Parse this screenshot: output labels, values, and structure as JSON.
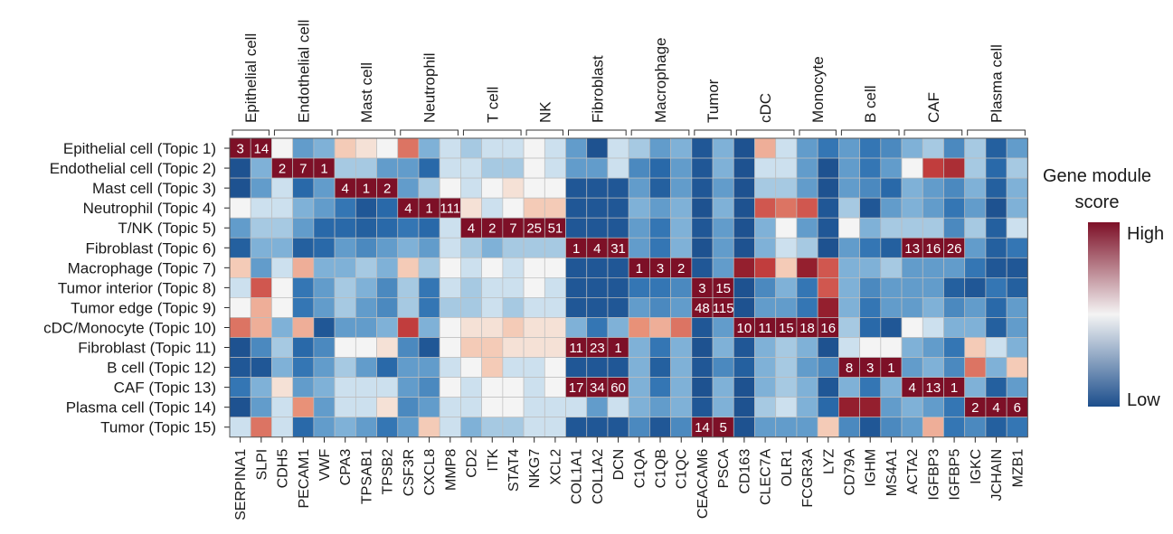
{
  "chart_data": {
    "type": "heatmap",
    "title": "",
    "xlabel": "",
    "ylabel": "",
    "groups": [
      {
        "name": "Epithelial cell",
        "span": [
          0,
          1
        ]
      },
      {
        "name": "Endothelial cell",
        "span": [
          2,
          4
        ]
      },
      {
        "name": "Mast cell",
        "span": [
          5,
          7
        ]
      },
      {
        "name": "Neutrophil",
        "span": [
          8,
          10
        ]
      },
      {
        "name": "T cell",
        "span": [
          11,
          13
        ]
      },
      {
        "name": "NK",
        "span": [
          14,
          15
        ]
      },
      {
        "name": "Fibroblast",
        "span": [
          16,
          18
        ]
      },
      {
        "name": "Macrophage",
        "span": [
          19,
          21
        ]
      },
      {
        "name": "Tumor",
        "span": [
          22,
          23
        ]
      },
      {
        "name": "cDC",
        "span": [
          24,
          26
        ]
      },
      {
        "name": "Monocyte",
        "span": [
          27,
          28
        ]
      },
      {
        "name": "B cell",
        "span": [
          29,
          31
        ]
      },
      {
        "name": "CAF",
        "span": [
          32,
          34
        ]
      },
      {
        "name": "Plasma cell",
        "span": [
          35,
          37
        ]
      }
    ],
    "genes": [
      "SERPINA1",
      "SLPI",
      "CDH5",
      "PECAM1",
      "VWF",
      "CPA3",
      "TPSAB1",
      "TPSB2",
      "CSF3R",
      "CXCL8",
      "MMP8",
      "CD2",
      "ITK",
      "STAT4",
      "NKG7",
      "XCL2",
      "COL1A1",
      "COL1A2",
      "DCN",
      "C1QA",
      "C1QB",
      "C1QC",
      "CEACAM6",
      "PSCA",
      "CD163",
      "CLEC7A",
      "OLR1",
      "FCGR3A",
      "LYZ",
      "CD79A",
      "IGHM",
      "MS4A1",
      "ACTA2",
      "IGFBP3",
      "IGFBP5",
      "IGKC",
      "JCHAIN",
      "MZB1"
    ],
    "topics": [
      "Epithelial cell (Topic 1)",
      "Endothelial cell (Topic 2)",
      "Mast cell (Topic 3)",
      "Neutrophil (Topic 4)",
      "T/NK (Topic 5)",
      "Fibroblast (Topic 6)",
      "Macrophage (Topic 7)",
      "Tumor interior (Topic 8)",
      "Tumor edge (Topic 9)",
      "cDC/Monocyte (Topic 10)",
      "Fibroblast (Topic 11)",
      "B cell (Topic 12)",
      "CAF (Topic 13)",
      "Plasma cell (Topic 14)",
      "Tumor (Topic 15)"
    ],
    "values": [
      [
        1.0,
        1.0,
        0.5,
        0.3,
        0.35,
        0.6,
        0.55,
        0.5,
        0.75,
        0.35,
        0.45,
        0.4,
        0.45,
        0.45,
        0.5,
        0.45,
        0.3,
        0.02,
        0.45,
        0.4,
        0.3,
        0.35,
        0.05,
        0.35,
        0.02,
        0.65,
        0.45,
        0.3,
        0.2,
        0.3,
        0.2,
        0.25,
        0.35,
        0.4,
        0.25,
        0.4,
        0.1,
        0.3
      ],
      [
        0.02,
        0.35,
        1.0,
        1.0,
        1.0,
        0.4,
        0.4,
        0.3,
        0.3,
        0.15,
        0.45,
        0.45,
        0.4,
        0.4,
        0.5,
        0.45,
        0.3,
        0.3,
        0.45,
        0.25,
        0.15,
        0.3,
        0.05,
        0.35,
        0.02,
        0.45,
        0.45,
        0.3,
        0.02,
        0.3,
        0.2,
        0.3,
        0.5,
        0.85,
        0.9,
        0.4,
        0.15,
        0.4
      ],
      [
        0.02,
        0.3,
        0.45,
        0.15,
        0.3,
        1.0,
        1.0,
        1.0,
        0.3,
        0.4,
        0.5,
        0.45,
        0.5,
        0.55,
        0.5,
        0.5,
        0.05,
        0.05,
        0.05,
        0.3,
        0.1,
        0.3,
        0.05,
        0.3,
        0.02,
        0.4,
        0.4,
        0.3,
        0.02,
        0.3,
        0.25,
        0.15,
        0.35,
        0.3,
        0.25,
        0.35,
        0.1,
        0.35
      ],
      [
        0.5,
        0.45,
        0.45,
        0.35,
        0.3,
        0.2,
        0.05,
        0.15,
        1.0,
        1.0,
        1.0,
        0.55,
        0.45,
        0.5,
        0.6,
        0.6,
        0.05,
        0.05,
        0.05,
        0.35,
        0.3,
        0.35,
        0.02,
        0.35,
        0.02,
        0.8,
        0.75,
        0.8,
        0.05,
        0.4,
        0.05,
        0.3,
        0.35,
        0.3,
        0.2,
        0.3,
        0.02,
        0.35
      ],
      [
        0.3,
        0.4,
        0.4,
        0.3,
        0.15,
        0.15,
        0.1,
        0.15,
        0.2,
        0.15,
        0.45,
        1.0,
        1.0,
        1.0,
        1.0,
        1.0,
        0.05,
        0.05,
        0.05,
        0.3,
        0.2,
        0.35,
        0.05,
        0.3,
        0.02,
        0.35,
        0.5,
        0.3,
        0.05,
        0.5,
        0.35,
        0.4,
        0.4,
        0.4,
        0.25,
        0.4,
        0.1,
        0.45
      ],
      [
        0.1,
        0.35,
        0.35,
        0.1,
        0.15,
        0.3,
        0.25,
        0.3,
        0.35,
        0.3,
        0.45,
        0.4,
        0.35,
        0.4,
        0.4,
        0.4,
        1.0,
        1.0,
        1.0,
        0.3,
        0.2,
        0.35,
        0.02,
        0.3,
        0.02,
        0.35,
        0.45,
        0.4,
        0.02,
        0.3,
        0.2,
        0.1,
        1.0,
        1.0,
        1.0,
        0.3,
        0.1,
        0.2
      ],
      [
        0.6,
        0.3,
        0.45,
        0.65,
        0.35,
        0.35,
        0.4,
        0.35,
        0.6,
        0.4,
        0.5,
        0.45,
        0.5,
        0.45,
        0.5,
        0.5,
        0.05,
        0.05,
        0.05,
        1.0,
        1.0,
        1.0,
        0.05,
        0.3,
        0.95,
        0.85,
        0.6,
        0.95,
        0.8,
        0.35,
        0.35,
        0.4,
        0.3,
        0.3,
        0.3,
        0.2,
        0.05,
        0.05
      ],
      [
        0.45,
        0.8,
        0.5,
        0.2,
        0.3,
        0.4,
        0.35,
        0.25,
        0.4,
        0.2,
        0.45,
        0.4,
        0.45,
        0.45,
        0.5,
        0.45,
        0.05,
        0.05,
        0.05,
        0.2,
        0.2,
        0.25,
        1.0,
        1.0,
        0.02,
        0.25,
        0.35,
        0.2,
        0.8,
        0.35,
        0.25,
        0.3,
        0.3,
        0.3,
        0.1,
        0.05,
        0.2,
        0.1
      ],
      [
        0.5,
        0.65,
        0.5,
        0.2,
        0.3,
        0.4,
        0.3,
        0.25,
        0.4,
        0.2,
        0.4,
        0.4,
        0.45,
        0.4,
        0.45,
        0.45,
        0.05,
        0.05,
        0.05,
        0.3,
        0.25,
        0.3,
        1.0,
        1.0,
        0.02,
        0.3,
        0.3,
        0.2,
        0.95,
        0.35,
        0.2,
        0.3,
        0.3,
        0.35,
        0.25,
        0.3,
        0.15,
        0.3
      ],
      [
        0.75,
        0.65,
        0.35,
        0.65,
        0.05,
        0.3,
        0.3,
        0.35,
        0.85,
        0.35,
        0.5,
        0.55,
        0.55,
        0.6,
        0.55,
        0.55,
        0.35,
        0.2,
        0.35,
        0.7,
        0.65,
        0.75,
        0.05,
        0.3,
        1.0,
        1.0,
        1.0,
        1.0,
        1.0,
        0.4,
        0.15,
        0.05,
        0.5,
        0.45,
        0.35,
        0.35,
        0.1,
        0.3
      ],
      [
        0.02,
        0.25,
        0.4,
        0.15,
        0.25,
        0.5,
        0.5,
        0.55,
        0.25,
        0.05,
        0.5,
        0.6,
        0.6,
        0.55,
        0.55,
        0.55,
        1.0,
        1.0,
        1.0,
        0.35,
        0.2,
        0.35,
        0.02,
        0.35,
        0.05,
        0.35,
        0.4,
        0.35,
        0.02,
        0.45,
        0.5,
        0.5,
        0.35,
        0.3,
        0.2,
        0.6,
        0.45,
        0.35
      ],
      [
        0.05,
        0.05,
        0.35,
        0.2,
        0.3,
        0.4,
        0.3,
        0.15,
        0.3,
        0.3,
        0.45,
        0.5,
        0.6,
        0.45,
        0.45,
        0.5,
        0.05,
        0.05,
        0.05,
        0.35,
        0.1,
        0.35,
        0.05,
        0.25,
        0.1,
        0.35,
        0.4,
        0.3,
        0.25,
        1.0,
        1.0,
        1.0,
        0.3,
        0.35,
        0.25,
        0.75,
        0.35,
        0.6
      ],
      [
        0.2,
        0.35,
        0.55,
        0.3,
        0.35,
        0.45,
        0.45,
        0.45,
        0.3,
        0.25,
        0.5,
        0.45,
        0.5,
        0.5,
        0.45,
        0.5,
        1.0,
        1.0,
        1.0,
        0.35,
        0.2,
        0.35,
        0.02,
        0.35,
        0.02,
        0.35,
        0.4,
        0.35,
        0.05,
        0.35,
        0.2,
        0.35,
        1.0,
        1.0,
        1.0,
        0.35,
        0.1,
        0.3
      ],
      [
        0.02,
        0.3,
        0.45,
        0.7,
        0.3,
        0.45,
        0.45,
        0.55,
        0.25,
        0.3,
        0.45,
        0.45,
        0.5,
        0.5,
        0.45,
        0.45,
        0.45,
        0.3,
        0.45,
        0.35,
        0.3,
        0.35,
        0.05,
        0.35,
        0.02,
        0.4,
        0.45,
        0.35,
        0.15,
        0.95,
        0.95,
        0.3,
        0.35,
        0.3,
        0.2,
        1.0,
        1.0,
        1.0
      ],
      [
        0.45,
        0.75,
        0.45,
        0.15,
        0.3,
        0.35,
        0.3,
        0.2,
        0.3,
        0.6,
        0.45,
        0.35,
        0.4,
        0.4,
        0.45,
        0.45,
        0.05,
        0.05,
        0.05,
        0.25,
        0.05,
        0.25,
        1.0,
        1.0,
        0.02,
        0.3,
        0.3,
        0.3,
        0.6,
        0.25,
        0.05,
        0.25,
        0.3,
        0.65,
        0.2,
        0.25,
        0.1,
        0.2
      ]
    ],
    "cell_labels": [
      {
        "row": 0,
        "col": 0,
        "text": "3"
      },
      {
        "row": 0,
        "col": 1,
        "text": "14"
      },
      {
        "row": 1,
        "col": 2,
        "text": "2"
      },
      {
        "row": 1,
        "col": 3,
        "text": "7"
      },
      {
        "row": 1,
        "col": 4,
        "text": "1"
      },
      {
        "row": 2,
        "col": 5,
        "text": "4"
      },
      {
        "row": 2,
        "col": 6,
        "text": "1"
      },
      {
        "row": 2,
        "col": 7,
        "text": "2"
      },
      {
        "row": 3,
        "col": 8,
        "text": "4"
      },
      {
        "row": 3,
        "col": 9,
        "text": "1"
      },
      {
        "row": 3,
        "col": 10,
        "text": "111"
      },
      {
        "row": 4,
        "col": 11,
        "text": "4"
      },
      {
        "row": 4,
        "col": 12,
        "text": "2"
      },
      {
        "row": 4,
        "col": 13,
        "text": "7"
      },
      {
        "row": 4,
        "col": 14,
        "text": "25"
      },
      {
        "row": 4,
        "col": 15,
        "text": "51"
      },
      {
        "row": 5,
        "col": 16,
        "text": "1"
      },
      {
        "row": 5,
        "col": 17,
        "text": "4"
      },
      {
        "row": 5,
        "col": 18,
        "text": "31"
      },
      {
        "row": 5,
        "col": 32,
        "text": "13"
      },
      {
        "row": 5,
        "col": 33,
        "text": "16"
      },
      {
        "row": 5,
        "col": 34,
        "text": "26"
      },
      {
        "row": 6,
        "col": 19,
        "text": "1"
      },
      {
        "row": 6,
        "col": 20,
        "text": "3"
      },
      {
        "row": 6,
        "col": 21,
        "text": "2"
      },
      {
        "row": 7,
        "col": 22,
        "text": "3"
      },
      {
        "row": 7,
        "col": 23,
        "text": "15"
      },
      {
        "row": 8,
        "col": 22,
        "text": "48"
      },
      {
        "row": 8,
        "col": 23,
        "text": "115"
      },
      {
        "row": 9,
        "col": 24,
        "text": "10"
      },
      {
        "row": 9,
        "col": 25,
        "text": "11"
      },
      {
        "row": 9,
        "col": 26,
        "text": "15"
      },
      {
        "row": 9,
        "col": 27,
        "text": "18"
      },
      {
        "row": 9,
        "col": 28,
        "text": "16"
      },
      {
        "row": 10,
        "col": 16,
        "text": "11"
      },
      {
        "row": 10,
        "col": 17,
        "text": "23"
      },
      {
        "row": 10,
        "col": 18,
        "text": "1"
      },
      {
        "row": 11,
        "col": 29,
        "text": "8"
      },
      {
        "row": 11,
        "col": 30,
        "text": "3"
      },
      {
        "row": 11,
        "col": 31,
        "text": "1"
      },
      {
        "row": 12,
        "col": 16,
        "text": "17"
      },
      {
        "row": 12,
        "col": 17,
        "text": "34"
      },
      {
        "row": 12,
        "col": 18,
        "text": "60"
      },
      {
        "row": 12,
        "col": 32,
        "text": "4"
      },
      {
        "row": 12,
        "col": 33,
        "text": "13"
      },
      {
        "row": 12,
        "col": 34,
        "text": "1"
      },
      {
        "row": 13,
        "col": 35,
        "text": "2"
      },
      {
        "row": 13,
        "col": 36,
        "text": "4"
      },
      {
        "row": 13,
        "col": 37,
        "text": "6"
      },
      {
        "row": 14,
        "col": 22,
        "text": "14"
      },
      {
        "row": 14,
        "col": 23,
        "text": "5"
      }
    ],
    "colorbar": {
      "title_line1": "Gene module",
      "title_line2": "score",
      "high_label": "High",
      "low_label": "Low"
    },
    "colors": {
      "low": "#1c4e8c",
      "mid": "#f4f4f4",
      "high": "#7d1027",
      "grid": "#bdbdbd",
      "text": "#1a1a1a"
    }
  }
}
